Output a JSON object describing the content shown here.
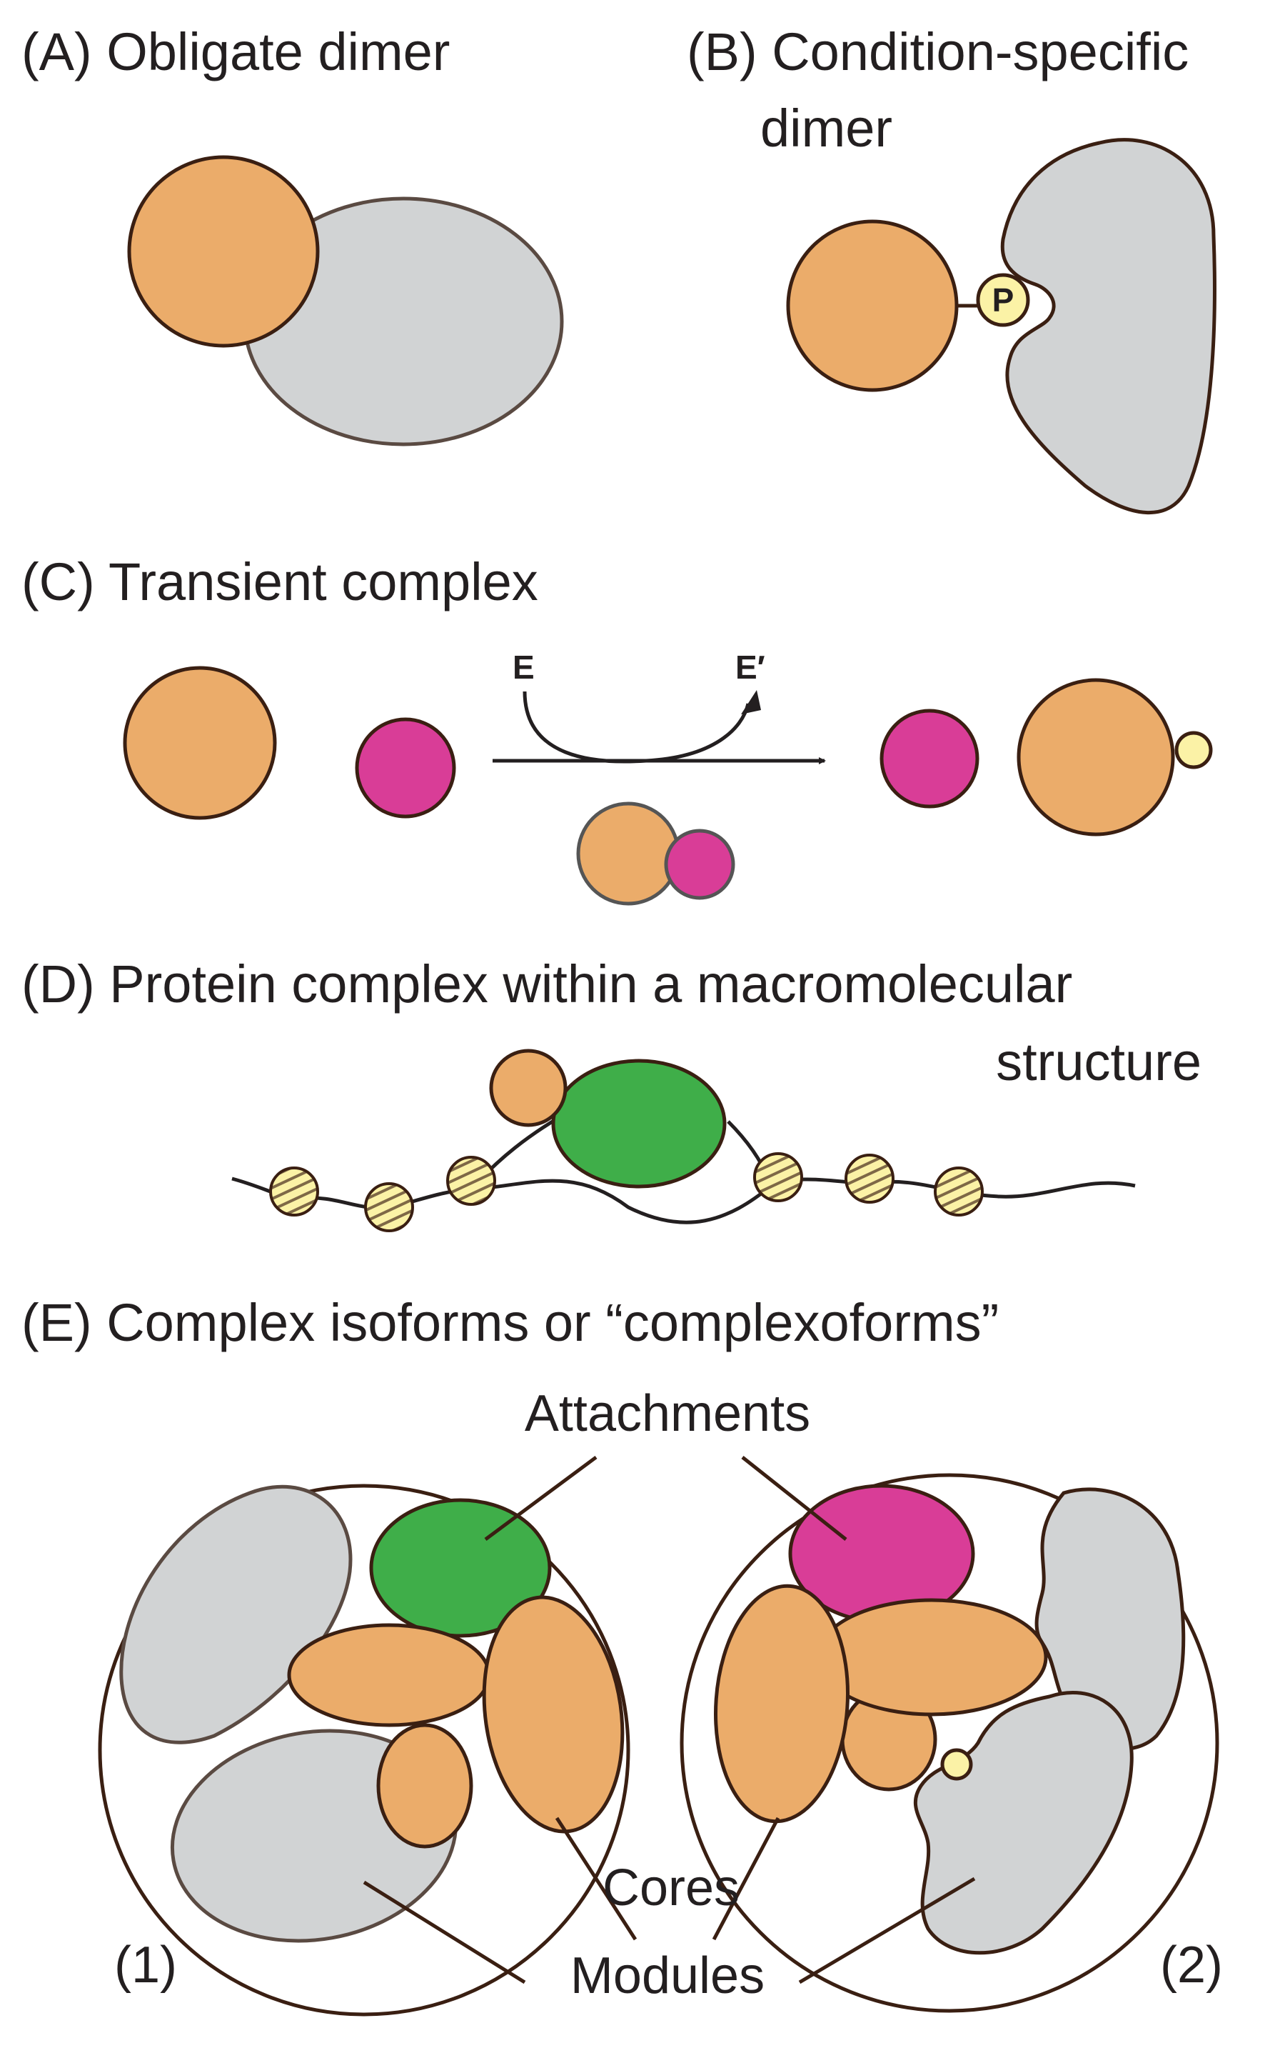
{
  "panels": {
    "a": {
      "title": "(A) Obligate dimer"
    },
    "b": {
      "title_line1": "(B) Condition-specific",
      "title_line2": "dimer",
      "phospho_label": "P"
    },
    "c": {
      "title": "(C) Transient complex",
      "enzyme_in": "E",
      "enzyme_out": "E′"
    },
    "d": {
      "title_line1": "(D) Protein complex within a macromolecular",
      "title_line2": "structure"
    },
    "e": {
      "title": "(E) Complex isoforms or “complexoforms”",
      "label_attachments": "Attachments",
      "label_cores": "Cores",
      "label_modules": "Modules",
      "label_isoform_1": "(1)",
      "label_isoform_2": "(2)"
    }
  },
  "colors": {
    "orange": "#EBAC6A",
    "gray": "#D1D3D4",
    "magenta": "#D93D97",
    "green": "#3FAE49",
    "yellow": "#FBF2A6",
    "outline": "#3A1F12"
  }
}
